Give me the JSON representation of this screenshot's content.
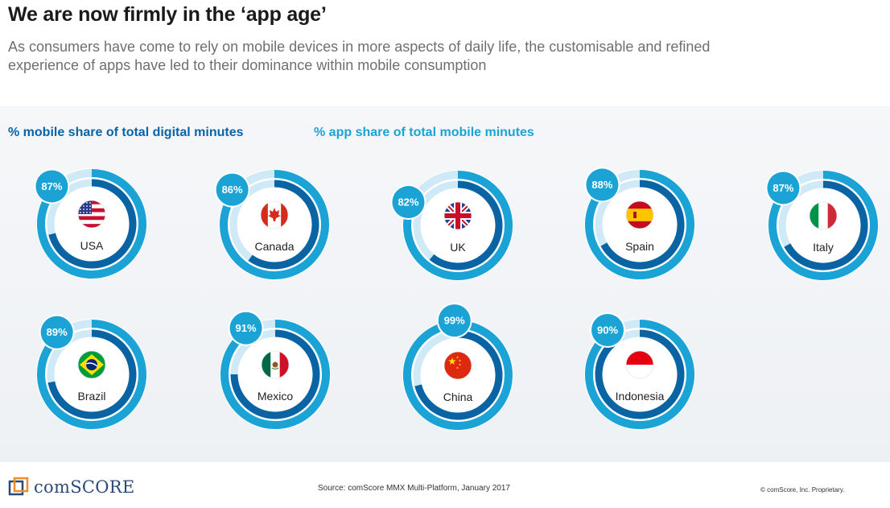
{
  "title": "We are now firmly in the ‘app age’",
  "subtitle": "As consumers have come to rely on mobile devices in more aspects of daily life, the customisable and refined experience of apps have led to their dominance within mobile consumption",
  "legend": {
    "mobile_label": "%  mobile share of total digital minutes",
    "app_label": "%  app share of total mobile minutes"
  },
  "colors": {
    "mobile": "#0a64a4",
    "app": "#1ba3d6",
    "track": "#cfe9f6",
    "badge": "#1ba3d6",
    "badge_text": "#ffffff",
    "legend_mobile": "#0a64a4",
    "legend_app": "#1ba3d6"
  },
  "chart_data": {
    "type": "donut",
    "title": "We are now firmly in the ‘app age’",
    "series": [
      {
        "name": "% mobile share of total digital minutes",
        "key": "mobile"
      },
      {
        "name": "% app share of total mobile minutes",
        "key": "app"
      }
    ],
    "countries": [
      {
        "name": "USA",
        "flag": "flag-usa",
        "app_share": 87,
        "app_label": "87%",
        "mobile_share": 71
      },
      {
        "name": "Canada",
        "flag": "flag-canada",
        "app_share": 86,
        "app_label": "86%",
        "mobile_share": 60
      },
      {
        "name": "UK",
        "flag": "flag-uk",
        "app_share": 82,
        "app_label": "82%",
        "mobile_share": 61
      },
      {
        "name": "Spain",
        "flag": "flag-spain",
        "app_share": 88,
        "app_label": "88%",
        "mobile_share": 67
      },
      {
        "name": "Italy",
        "flag": "flag-italy",
        "app_share": 87,
        "app_label": "87%",
        "mobile_share": 67
      },
      {
        "name": "Brazil",
        "flag": "flag-brazil",
        "app_share": 89,
        "app_label": "89%",
        "mobile_share": 72
      },
      {
        "name": "Mexico",
        "flag": "flag-mexico",
        "app_share": 91,
        "app_label": "91%",
        "mobile_share": 75
      },
      {
        "name": "China",
        "flag": "flag-china",
        "app_share": 99,
        "app_label": "99%",
        "mobile_share": 71
      },
      {
        "name": "Indonesia",
        "flag": "flag-indonesia",
        "app_share": 90,
        "app_label": "90%",
        "mobile_share": 91
      }
    ]
  },
  "footer": {
    "brand": "comSCORE",
    "source": "Source: comScore MMX Multi-Platform, January 2017",
    "copyright": "© comScore, Inc. Proprietary."
  }
}
